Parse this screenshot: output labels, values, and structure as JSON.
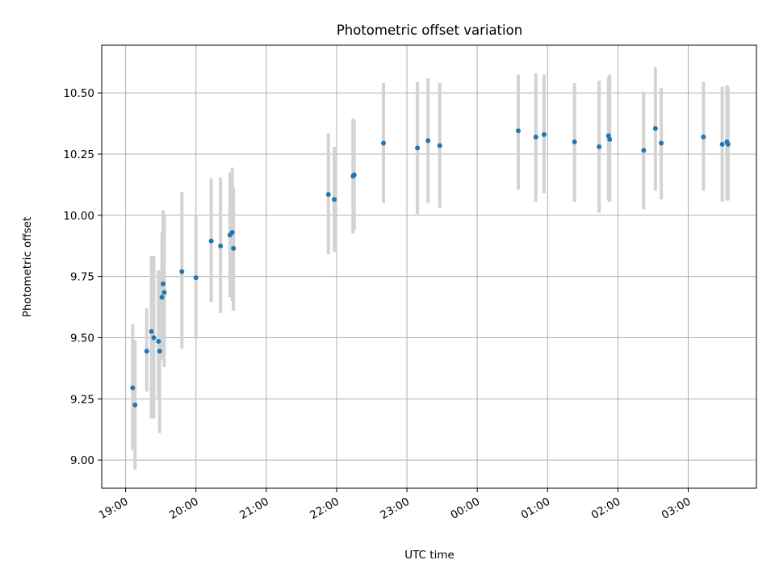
{
  "chart_data": {
    "type": "scatter",
    "title": "Photometric offset variation",
    "xlabel": "UTC time",
    "ylabel": "Photometric offset",
    "xlim_hours": [
      18.66,
      27.97
    ],
    "ylim": [
      8.885,
      10.695
    ],
    "x_ticks": [
      {
        "h": 19,
        "label": "19:00"
      },
      {
        "h": 20,
        "label": "20:00"
      },
      {
        "h": 21,
        "label": "21:00"
      },
      {
        "h": 22,
        "label": "22:00"
      },
      {
        "h": 23,
        "label": "23:00"
      },
      {
        "h": 24,
        "label": "00:00"
      },
      {
        "h": 25,
        "label": "01:00"
      },
      {
        "h": 26,
        "label": "02:00"
      },
      {
        "h": 27,
        "label": "03:00"
      }
    ],
    "y_ticks": [
      {
        "v": 9.0,
        "label": "9.00"
      },
      {
        "v": 9.25,
        "label": "9.25"
      },
      {
        "v": 9.5,
        "label": "9.50"
      },
      {
        "v": 9.75,
        "label": "9.75"
      },
      {
        "v": 10.0,
        "label": "10.00"
      },
      {
        "v": 10.25,
        "label": "10.25"
      },
      {
        "v": 10.5,
        "label": "10.50"
      }
    ],
    "grid": true,
    "point_color": "#1f77b4",
    "errorbar_color": "#d3d3d3",
    "series": [
      {
        "points": [
          {
            "t": "19:06",
            "y": 9.295,
            "lo": 9.04,
            "hi": 9.555
          },
          {
            "t": "19:08",
            "y": 9.225,
            "lo": 8.96,
            "hi": 9.49
          },
          {
            "t": "19:18",
            "y": 9.445,
            "lo": 9.28,
            "hi": 9.62
          },
          {
            "t": "19:22",
            "y": 9.525,
            "lo": 9.17,
            "hi": 9.835
          },
          {
            "t": "19:24",
            "y": 9.5,
            "lo": 9.17,
            "hi": 9.835
          },
          {
            "t": "19:28",
            "y": 9.485,
            "lo": 9.25,
            "hi": 9.775
          },
          {
            "t": "19:29",
            "y": 9.445,
            "lo": 9.11,
            "hi": 9.765
          },
          {
            "t": "19:31",
            "y": 9.665,
            "lo": 9.41,
            "hi": 9.93
          },
          {
            "t": "19:32",
            "y": 9.72,
            "lo": 9.45,
            "hi": 10.02
          },
          {
            "t": "19:33",
            "y": 9.685,
            "lo": 9.38,
            "hi": 10.0
          },
          {
            "t": "19:48",
            "y": 9.77,
            "lo": 9.455,
            "hi": 10.095
          },
          {
            "t": "20:00",
            "y": 9.745,
            "lo": 9.495,
            "hi": 10.0
          },
          {
            "t": "20:13",
            "y": 9.895,
            "lo": 9.645,
            "hi": 10.15
          },
          {
            "t": "20:21",
            "y": 9.875,
            "lo": 9.6,
            "hi": 10.155
          },
          {
            "t": "20:29",
            "y": 9.92,
            "lo": 9.665,
            "hi": 10.175
          },
          {
            "t": "20:31",
            "y": 9.93,
            "lo": 9.65,
            "hi": 10.195
          },
          {
            "t": "20:32",
            "y": 9.865,
            "lo": 9.61,
            "hi": 10.115
          },
          {
            "t": "21:53",
            "y": 10.085,
            "lo": 9.84,
            "hi": 10.335
          },
          {
            "t": "21:58",
            "y": 10.065,
            "lo": 9.85,
            "hi": 10.28
          },
          {
            "t": "22:14",
            "y": 10.16,
            "lo": 9.925,
            "hi": 10.395
          },
          {
            "t": "22:15",
            "y": 10.165,
            "lo": 9.94,
            "hi": 10.39
          },
          {
            "t": "22:40",
            "y": 10.295,
            "lo": 10.05,
            "hi": 10.54
          },
          {
            "t": "23:09",
            "y": 10.275,
            "lo": 10.005,
            "hi": 10.545
          },
          {
            "t": "23:18",
            "y": 10.305,
            "lo": 10.05,
            "hi": 10.56
          },
          {
            "t": "23:28",
            "y": 10.285,
            "lo": 10.03,
            "hi": 10.54
          },
          {
            "t": "00:35",
            "y": 10.345,
            "lo": 10.105,
            "hi": 10.575
          },
          {
            "t": "00:50",
            "y": 10.32,
            "lo": 10.055,
            "hi": 10.58
          },
          {
            "t": "00:57",
            "y": 10.33,
            "lo": 10.09,
            "hi": 10.575
          },
          {
            "t": "01:23",
            "y": 10.3,
            "lo": 10.055,
            "hi": 10.54
          },
          {
            "t": "01:44",
            "y": 10.28,
            "lo": 10.01,
            "hi": 10.55
          },
          {
            "t": "01:52",
            "y": 10.325,
            "lo": 10.06,
            "hi": 10.565
          },
          {
            "t": "01:53",
            "y": 10.31,
            "lo": 10.055,
            "hi": 10.575
          },
          {
            "t": "02:22",
            "y": 10.265,
            "lo": 10.025,
            "hi": 10.505
          },
          {
            "t": "02:32",
            "y": 10.355,
            "lo": 10.1,
            "hi": 10.605
          },
          {
            "t": "02:37",
            "y": 10.295,
            "lo": 10.065,
            "hi": 10.52
          },
          {
            "t": "03:13",
            "y": 10.32,
            "lo": 10.1,
            "hi": 10.545
          },
          {
            "t": "03:29",
            "y": 10.29,
            "lo": 10.055,
            "hi": 10.525
          },
          {
            "t": "03:33",
            "y": 10.3,
            "lo": 10.06,
            "hi": 10.53
          },
          {
            "t": "03:34",
            "y": 10.29,
            "lo": 10.06,
            "hi": 10.525
          }
        ]
      }
    ]
  }
}
